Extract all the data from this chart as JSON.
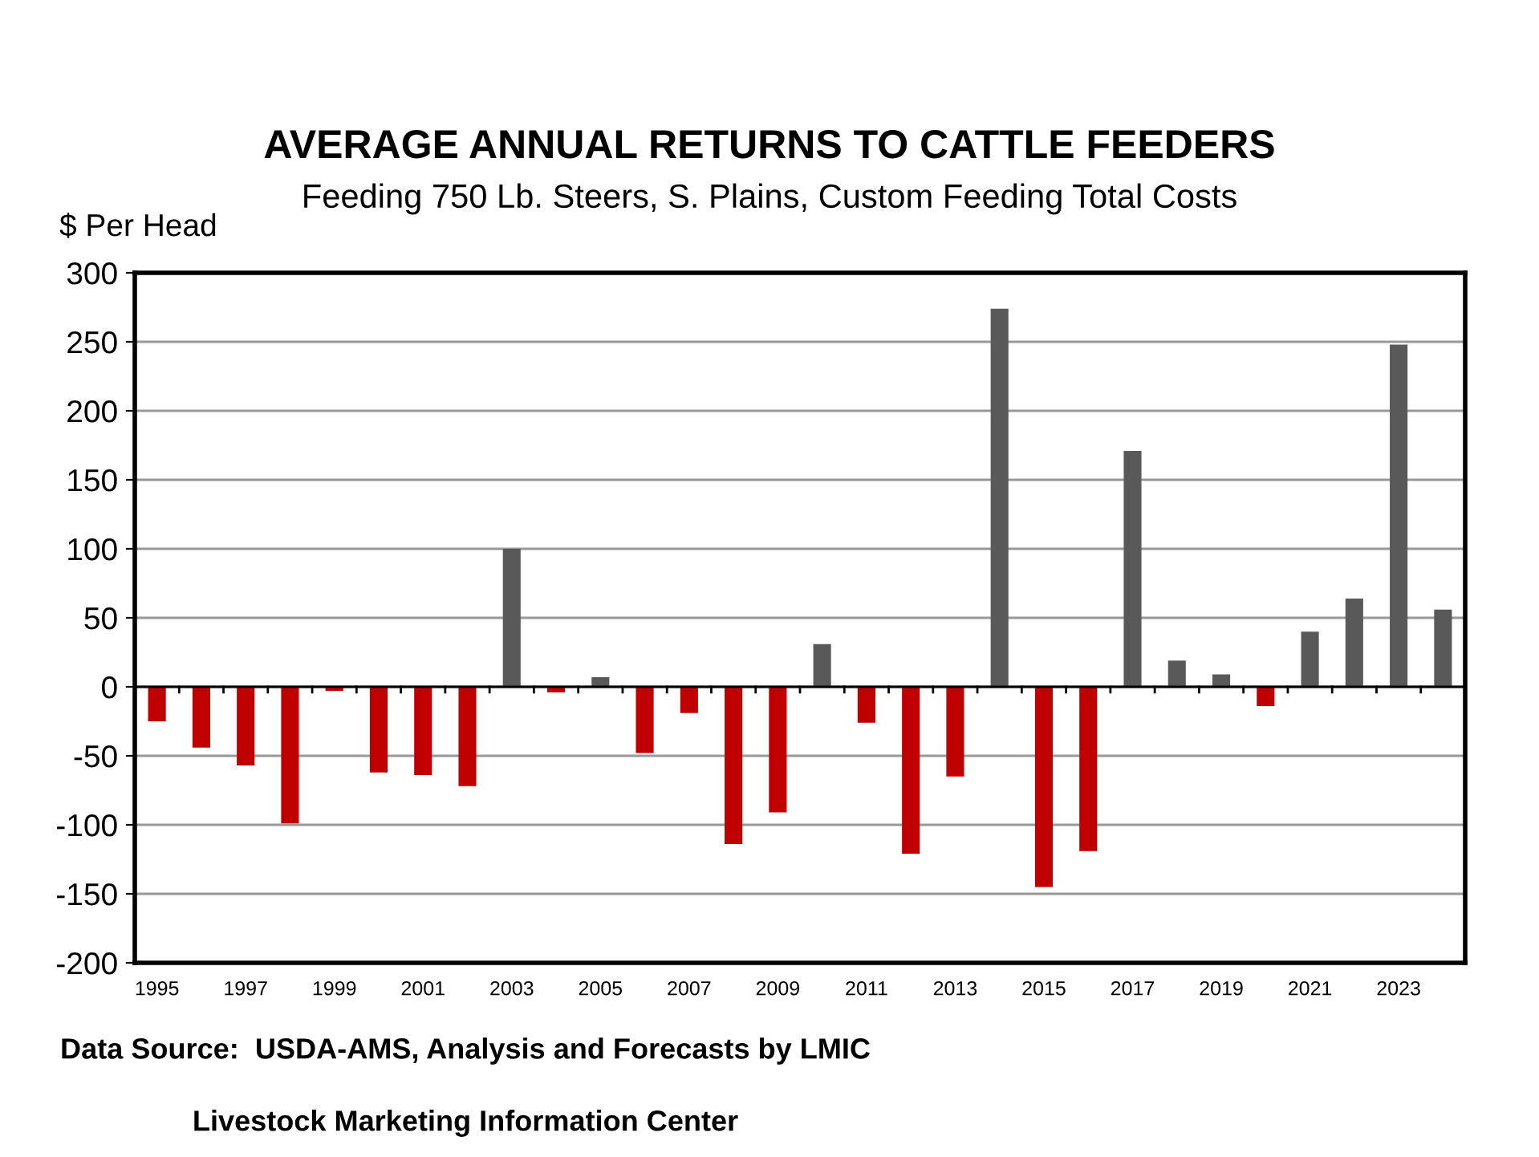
{
  "chart_data": {
    "type": "bar",
    "title": "AVERAGE ANNUAL RETURNS TO CATTLE FEEDERS",
    "subtitle": "Feeding 750 Lb. Steers, S. Plains, Custom Feeding Total Costs",
    "ylabel": "$ Per Head",
    "categories": [
      "1995",
      null,
      "1997",
      null,
      "1999",
      null,
      "2001",
      null,
      "2003",
      null,
      "2005",
      null,
      "2007",
      null,
      "2009",
      null,
      "2011",
      null,
      "2013",
      null,
      "2015",
      null,
      "2017",
      null,
      "2019",
      null,
      "2021",
      null,
      "2023",
      null
    ],
    "values": [
      -25,
      -44,
      -57,
      -99,
      -3,
      -62,
      -64,
      -72,
      100,
      -4,
      7,
      -48,
      -19,
      -114,
      -91,
      31,
      -26,
      -121,
      -65,
      274,
      -145,
      -119,
      171,
      19,
      9,
      -14,
      40,
      64,
      248,
      56
    ],
    "colors": [
      "#c00000",
      "#c00000",
      "#c00000",
      "#c00000",
      "#c00000",
      "#c00000",
      "#c00000",
      "#c00000",
      "#595959",
      "#c00000",
      "#595959",
      "#c00000",
      "#c00000",
      "#c00000",
      "#c00000",
      "#595959",
      "#c00000",
      "#c00000",
      "#c00000",
      "#595959",
      "#c00000",
      "#c00000",
      "#595959",
      "#595959",
      "#595959",
      "#c00000",
      "#595959",
      "#595959",
      "#595959",
      "#595959"
    ],
    "ylim": [
      -200,
      300
    ],
    "yticks": [
      -200,
      -150,
      -100,
      -50,
      0,
      50,
      100,
      150,
      200,
      250,
      300
    ],
    "grid": "y",
    "annotations": [
      "Data Source:  USDA-AMS, Analysis and Forecasts by LMIC",
      "Livestock Marketing Information Center"
    ]
  }
}
